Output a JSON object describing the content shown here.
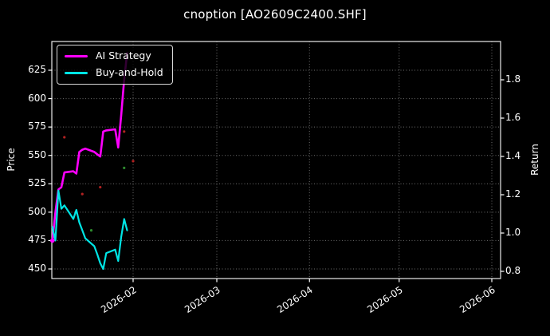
{
  "title": "cnoption [AO2609C2400.SHF]",
  "chart_data": {
    "type": "line",
    "title": "cnoption [AO2609C2400.SHF]",
    "background_color": "#000000",
    "text_color": "#ffffff",
    "grid": true,
    "grid_style": "dotted",
    "legend": {
      "position": "upper left"
    },
    "x_axis": {
      "tick_labels": [
        "2026-02",
        "2026-03",
        "2026-04",
        "2026-05",
        "2026-06"
      ],
      "range": [
        "2026-01-05",
        "2026-06-04"
      ],
      "tick_label_rotation_deg": -33
    },
    "left_axis": {
      "label": "Price",
      "ticks": [
        450,
        475,
        500,
        525,
        550,
        575,
        600,
        625
      ],
      "range": [
        441.5,
        650.5
      ]
    },
    "right_axis": {
      "label": "Return",
      "ticks": [
        0.8,
        1.0,
        1.2,
        1.4,
        1.6,
        1.8
      ],
      "range": [
        0.76,
        2.0
      ]
    },
    "dates": [
      "2026-01-05",
      "2026-01-06",
      "2026-01-07",
      "2026-01-08",
      "2026-01-09",
      "2026-01-12",
      "2026-01-13",
      "2026-01-14",
      "2026-01-15",
      "2026-01-16",
      "2026-01-19",
      "2026-01-20",
      "2026-01-21",
      "2026-01-22",
      "2026-01-23",
      "2026-01-26",
      "2026-01-27",
      "2026-01-28",
      "2026-01-29",
      "2026-01-30"
    ],
    "series": [
      {
        "name": "AI Strategy",
        "color": "#ff00ff",
        "axis": "price",
        "values": [
          475,
          500,
          520,
          522,
          535,
          536,
          534,
          553,
          555,
          556,
          553,
          551,
          549,
          571,
          572,
          573,
          557,
          585,
          617,
          640
        ]
      },
      {
        "name": "Buy-and-Hold",
        "color": "#00e5e5",
        "axis": "price",
        "values": [
          487,
          475,
          519,
          503,
          506,
          494,
          502,
          491,
          484,
          477,
          470,
          463,
          455,
          450,
          464,
          467,
          457,
          478,
          494,
          484
        ]
      }
    ],
    "markers": [
      {
        "date": "2026-01-05",
        "value": 475,
        "color": "#ff00ff",
        "size": 2.8,
        "kind": "series-start-dot"
      },
      {
        "date": "2026-01-09",
        "value": 566,
        "color": "#b22222",
        "size": 1.6,
        "kind": "trade-marker"
      },
      {
        "date": "2026-01-15",
        "value": 516,
        "color": "#b22222",
        "size": 1.6,
        "kind": "trade-marker"
      },
      {
        "date": "2026-01-21",
        "value": 522,
        "color": "#b22222",
        "size": 1.6,
        "kind": "trade-marker"
      },
      {
        "date": "2026-01-29",
        "value": 571,
        "color": "#b22222",
        "size": 1.6,
        "kind": "trade-marker"
      },
      {
        "date": "2026-02-01",
        "value": 545,
        "color": "#b22222",
        "size": 1.6,
        "kind": "trade-marker"
      },
      {
        "date": "2026-01-29",
        "value": 539,
        "color": "#2e8b2e",
        "size": 1.6,
        "kind": "trade-marker"
      },
      {
        "date": "2026-01-18",
        "value": 484,
        "color": "#2e8b2e",
        "size": 1.6,
        "kind": "trade-marker"
      }
    ]
  }
}
